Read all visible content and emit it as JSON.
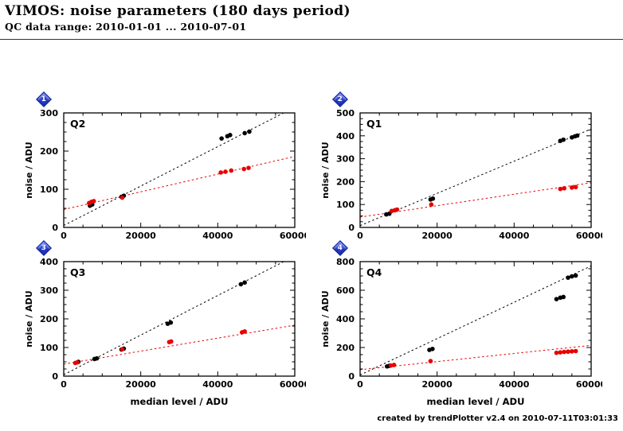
{
  "header": {
    "title": "VIMOS: noise parameters (180 days period)",
    "subtitle": "QC data range: 2010-01-01 ... 2010-07-01"
  },
  "footer": {
    "credit": "created by trendPlotter v2.4 on 2010-07-11T03:01:33"
  },
  "colors": {
    "link_diamond": "#2a3fd4",
    "point_black": "#000000",
    "point_red": "#e60000"
  },
  "chart_data": [
    {
      "type": "scatter",
      "id": "Q2",
      "link_number": "1",
      "xlabel": "",
      "ylabel": "noise / ADU",
      "xlim": [
        0,
        60000
      ],
      "ylim": [
        0,
        300
      ],
      "xticks": [
        0,
        20000,
        40000,
        60000
      ],
      "yticks": [
        0,
        100,
        200,
        300
      ],
      "series": [
        {
          "name": "noise-black",
          "color": "#000000",
          "points": [
            [
              6800,
              57
            ],
            [
              7400,
              60
            ],
            [
              15000,
              80
            ],
            [
              15600,
              83
            ],
            [
              41000,
              233
            ],
            [
              42500,
              239
            ],
            [
              43200,
              242
            ],
            [
              47000,
              247
            ],
            [
              48200,
              251
            ]
          ]
        },
        {
          "name": "noise-red",
          "color": "#e60000",
          "points": [
            [
              6600,
              64
            ],
            [
              7200,
              67
            ],
            [
              7800,
              69
            ],
            [
              15200,
              78
            ],
            [
              40800,
              144
            ],
            [
              42000,
              146
            ],
            [
              43500,
              149
            ],
            [
              46800,
              153
            ],
            [
              48000,
              156
            ]
          ]
        }
      ],
      "trends": [
        {
          "color": "#000000",
          "x0": 0,
          "y0": 5,
          "x1": 60000,
          "y1": 315
        },
        {
          "color": "#e60000",
          "x0": 0,
          "y0": 47,
          "x1": 60000,
          "y1": 186
        }
      ]
    },
    {
      "type": "scatter",
      "id": "Q1",
      "link_number": "2",
      "xlabel": "",
      "ylabel": "noise / ADU",
      "xlim": [
        0,
        60000
      ],
      "ylim": [
        0,
        500
      ],
      "xticks": [
        0,
        20000,
        40000,
        60000
      ],
      "yticks": [
        0,
        100,
        200,
        300,
        400,
        500
      ],
      "series": [
        {
          "name": "noise-black",
          "color": "#000000",
          "points": [
            [
              6800,
              57
            ],
            [
              7600,
              60
            ],
            [
              18300,
              122
            ],
            [
              18900,
              126
            ],
            [
              52000,
              378
            ],
            [
              52800,
              383
            ],
            [
              55000,
              393
            ],
            [
              55800,
              398
            ],
            [
              56400,
              401
            ]
          ]
        },
        {
          "name": "noise-red",
          "color": "#e60000",
          "points": [
            [
              8200,
              72
            ],
            [
              9000,
              75
            ],
            [
              9600,
              78
            ],
            [
              18500,
              100
            ],
            [
              52000,
              168
            ],
            [
              53000,
              171
            ],
            [
              55000,
              174
            ],
            [
              56000,
              176
            ]
          ]
        }
      ],
      "trends": [
        {
          "color": "#000000",
          "x0": 0,
          "y0": 8,
          "x1": 60000,
          "y1": 430
        },
        {
          "color": "#e60000",
          "x0": 0,
          "y0": 45,
          "x1": 60000,
          "y1": 195
        }
      ]
    },
    {
      "type": "scatter",
      "id": "Q3",
      "link_number": "3",
      "xlabel": "median level / ADU",
      "ylabel": "noise / ADU",
      "xlim": [
        0,
        60000
      ],
      "ylim": [
        0,
        400
      ],
      "xticks": [
        0,
        20000,
        40000,
        60000
      ],
      "yticks": [
        0,
        100,
        200,
        300,
        400
      ],
      "series": [
        {
          "name": "noise-black",
          "color": "#000000",
          "points": [
            [
              3800,
              50
            ],
            [
              8000,
              60
            ],
            [
              8600,
              62
            ],
            [
              15000,
              93
            ],
            [
              15600,
              96
            ],
            [
              27000,
              183
            ],
            [
              27800,
              187
            ],
            [
              46000,
              321
            ],
            [
              47000,
              327
            ]
          ]
        },
        {
          "name": "noise-red",
          "color": "#e60000",
          "points": [
            [
              3000,
              46
            ],
            [
              3500,
              48
            ],
            [
              15200,
              94
            ],
            [
              27400,
              119
            ],
            [
              27900,
              121
            ],
            [
              46300,
              153
            ],
            [
              47000,
              156
            ]
          ]
        }
      ],
      "trends": [
        {
          "color": "#000000",
          "x0": 0,
          "y0": 5,
          "x1": 60000,
          "y1": 420
        },
        {
          "color": "#e60000",
          "x0": 0,
          "y0": 42,
          "x1": 60000,
          "y1": 178
        }
      ]
    },
    {
      "type": "scatter",
      "id": "Q4",
      "link_number": "4",
      "xlabel": "median level / ADU",
      "ylabel": "noise / ADU",
      "xlim": [
        0,
        60000
      ],
      "ylim": [
        0,
        800
      ],
      "xticks": [
        0,
        20000,
        40000,
        60000
      ],
      "yticks": [
        0,
        200,
        400,
        600,
        800
      ],
      "series": [
        {
          "name": "noise-black",
          "color": "#000000",
          "points": [
            [
              7000,
              68
            ],
            [
              7600,
              72
            ],
            [
              18000,
              183
            ],
            [
              18800,
              190
            ],
            [
              51000,
              538
            ],
            [
              52000,
              548
            ],
            [
              52800,
              553
            ],
            [
              54000,
              688
            ],
            [
              55000,
              697
            ],
            [
              56000,
              703
            ]
          ]
        },
        {
          "name": "noise-red",
          "color": "#e60000",
          "points": [
            [
              8000,
              74
            ],
            [
              8800,
              78
            ],
            [
              18300,
              105
            ],
            [
              51000,
              163
            ],
            [
              52000,
              166
            ],
            [
              53000,
              169
            ],
            [
              54000,
              171
            ],
            [
              55000,
              173
            ],
            [
              56000,
              175
            ]
          ]
        }
      ],
      "trends": [
        {
          "color": "#000000",
          "x0": 0,
          "y0": 8,
          "x1": 60000,
          "y1": 770
        },
        {
          "color": "#e60000",
          "x0": 0,
          "y0": 45,
          "x1": 60000,
          "y1": 215
        }
      ]
    }
  ]
}
